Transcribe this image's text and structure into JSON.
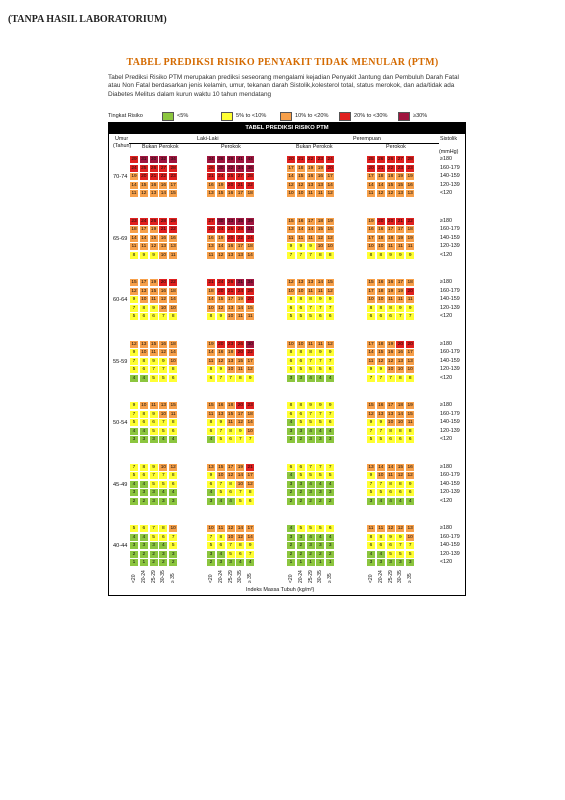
{
  "header": "(TANPA HASIL LABORATORIUM)",
  "title": "TABEL PREDIKSI RISIKO PENYAKIT TIDAK MENULAR (PTM)",
  "intro": "Tabel Prediksi Risiko PTM merupakan prediksi seseorang mengalami kejadian Penyakit Jantung dan Pembuluh Darah Fatal atau Non Fatal berdasarkan jenis kelamin, umur, tekanan darah Sistolik,kolesterol total, status merokok, dan ada/tidak ada Diabetes Melitus dalam kurun waktu 10 tahun mendatang",
  "legend": {
    "label": "Tingkat Risiko",
    "items": [
      {
        "label": "<5%",
        "color": "#8cc63f"
      },
      {
        "label": "5% to <10%",
        "color": "#ffff33"
      },
      {
        "label": "10% to <20%",
        "color": "#f7a04a"
      },
      {
        "label": "20% to <30%",
        "color": "#e0201f"
      },
      {
        "label": "≥30%",
        "color": "#a0153e"
      }
    ]
  },
  "panel": {
    "title": "TABEL PREDIKSI RISIKO PTM",
    "umur": "Umur",
    "tahun": "(Tahun)",
    "laki": "Laki-Laki",
    "perempuan": "Perempuan",
    "bukan": "Bukan Perokok",
    "perokok": "Perokok",
    "sistolik": "Sistolik",
    "mmhg": "(mmHg)",
    "xlabel": "Indeks Massa Tubuh (kg/m²)",
    "bmi": [
      "<20",
      "20-24",
      "25-29",
      "30-35",
      "≥ 35"
    ],
    "systolic": [
      "≥180",
      "160-179",
      "140-159",
      "120-139",
      "<120"
    ],
    "systolic_last": [
      "≥180",
      "160-179",
      "140-159",
      "120-139",
      "<120"
    ]
  },
  "age_groups": [
    {
      "age": "70-74",
      "blocks": [
        [
          [
            29,
            31,
            30,
            32,
            34
          ],
          [
            24,
            25,
            26,
            27,
            28
          ],
          [
            19,
            20,
            21,
            22,
            23
          ],
          [
            14,
            15,
            16,
            16,
            17
          ],
          [
            11,
            12,
            13,
            14,
            15
          ]
        ],
        [
          [
            34,
            36,
            39,
            41,
            44
          ],
          [
            26,
            30,
            32,
            34,
            36
          ],
          [
            21,
            24,
            25,
            27,
            28
          ],
          [
            16,
            19,
            20,
            21,
            22
          ],
          [
            13,
            15,
            16,
            17,
            18
          ]
        ],
        [
          [
            20,
            21,
            22,
            23,
            24
          ],
          [
            17,
            18,
            19,
            19,
            20
          ],
          [
            14,
            15,
            16,
            16,
            17
          ],
          [
            12,
            12,
            13,
            13,
            14
          ],
          [
            10,
            10,
            11,
            11,
            12
          ]
        ],
        [
          [
            25,
            26,
            26,
            27,
            28
          ],
          [
            20,
            21,
            22,
            23,
            23
          ],
          [
            17,
            18,
            18,
            19,
            19
          ],
          [
            14,
            14,
            15,
            15,
            16
          ],
          [
            11,
            12,
            12,
            13,
            13
          ]
        ]
      ]
    },
    {
      "age": "65-69",
      "blocks": [
        [
          [
            23,
            24,
            26,
            28,
            29
          ],
          [
            18,
            17,
            19,
            21,
            22
          ],
          [
            14,
            14,
            15,
            16,
            16
          ],
          [
            11,
            11,
            12,
            13,
            13
          ],
          [
            8,
            9,
            9,
            10,
            11
          ]
        ],
        [
          [
            27,
            30,
            33,
            35,
            39
          ],
          [
            20,
            24,
            26,
            28,
            31
          ],
          [
            16,
            19,
            20,
            22,
            24
          ],
          [
            13,
            14,
            16,
            17,
            18
          ],
          [
            11,
            12,
            13,
            13,
            14
          ]
        ],
        [
          [
            15,
            16,
            17,
            18,
            19
          ],
          [
            13,
            14,
            14,
            15,
            15
          ],
          [
            11,
            11,
            11,
            12,
            12
          ],
          [
            9,
            9,
            9,
            10,
            10
          ],
          [
            7,
            7,
            7,
            8,
            8
          ]
        ],
        [
          [
            19,
            20,
            20,
            21,
            22
          ],
          [
            16,
            16,
            17,
            17,
            18
          ],
          [
            17,
            18,
            18,
            19,
            19
          ],
          [
            10,
            10,
            11,
            11,
            11
          ],
          [
            8,
            8,
            9,
            9,
            9
          ]
        ]
      ]
    },
    {
      "age": "60-64",
      "blocks": [
        [
          [
            15,
            17,
            19,
            20,
            22
          ],
          [
            12,
            13,
            15,
            16,
            18
          ],
          [
            9,
            10,
            11,
            12,
            14
          ],
          [
            7,
            8,
            9,
            10,
            10
          ],
          [
            5,
            6,
            6,
            7,
            8
          ]
        ],
        [
          [
            21,
            24,
            26,
            31,
            34
          ],
          [
            18,
            20,
            21,
            24,
            26
          ],
          [
            14,
            15,
            17,
            19,
            20
          ],
          [
            10,
            12,
            13,
            14,
            15
          ],
          [
            8,
            9,
            10,
            11,
            11
          ]
        ],
        [
          [
            12,
            13,
            13,
            14,
            15
          ],
          [
            10,
            10,
            11,
            11,
            12
          ],
          [
            8,
            8,
            8,
            9,
            9
          ],
          [
            6,
            6,
            7,
            7,
            7
          ],
          [
            5,
            5,
            5,
            6,
            6
          ]
        ],
        [
          [
            15,
            16,
            16,
            17,
            18
          ],
          [
            17,
            18,
            19,
            19,
            20
          ],
          [
            10,
            10,
            11,
            11,
            11
          ],
          [
            8,
            8,
            8,
            9,
            9
          ],
          [
            6,
            6,
            6,
            7,
            7
          ]
        ]
      ]
    },
    {
      "age": "55-59",
      "blocks": [
        [
          [
            12,
            13,
            15,
            16,
            18
          ],
          [
            9,
            10,
            11,
            12,
            14
          ],
          [
            7,
            8,
            9,
            9,
            10
          ],
          [
            5,
            6,
            7,
            7,
            8
          ],
          [
            4,
            4,
            5,
            5,
            6
          ]
        ],
        [
          [
            19,
            20,
            23,
            26,
            30
          ],
          [
            14,
            16,
            18,
            20,
            22
          ],
          [
            11,
            12,
            13,
            15,
            17
          ],
          [
            8,
            9,
            10,
            11,
            12
          ],
          [
            6,
            7,
            7,
            8,
            9
          ]
        ],
        [
          [
            10,
            10,
            11,
            11,
            12
          ],
          [
            8,
            8,
            8,
            9,
            9
          ],
          [
            6,
            6,
            7,
            7,
            7
          ],
          [
            5,
            5,
            5,
            5,
            6
          ],
          [
            3,
            3,
            4,
            4,
            4
          ]
        ],
        [
          [
            17,
            18,
            19,
            20,
            20
          ],
          [
            14,
            15,
            16,
            16,
            17
          ],
          [
            11,
            12,
            12,
            13,
            13
          ],
          [
            9,
            9,
            10,
            10,
            10
          ],
          [
            7,
            7,
            7,
            8,
            8
          ]
        ]
      ]
    },
    {
      "age": "50-54",
      "blocks": [
        [
          [
            9,
            10,
            11,
            13,
            15
          ],
          [
            7,
            8,
            9,
            10,
            11
          ],
          [
            5,
            6,
            6,
            7,
            8
          ],
          [
            4,
            4,
            5,
            5,
            6
          ],
          [
            3,
            3,
            3,
            4,
            4
          ]
        ],
        [
          [
            15,
            16,
            18,
            20,
            23
          ],
          [
            11,
            13,
            15,
            17,
            18
          ],
          [
            8,
            9,
            11,
            12,
            14
          ],
          [
            6,
            7,
            8,
            9,
            10
          ],
          [
            4,
            5,
            6,
            7,
            7
          ]
        ],
        [
          [
            8,
            8,
            9,
            9,
            9
          ],
          [
            6,
            6,
            7,
            7,
            7
          ],
          [
            4,
            5,
            5,
            5,
            6
          ],
          [
            3,
            3,
            4,
            4,
            4
          ],
          [
            2,
            2,
            3,
            3,
            3
          ]
        ],
        [
          [
            15,
            16,
            17,
            18,
            19
          ],
          [
            12,
            13,
            13,
            14,
            15
          ],
          [
            9,
            9,
            10,
            10,
            11
          ],
          [
            7,
            7,
            8,
            8,
            8
          ],
          [
            5,
            5,
            6,
            6,
            6
          ]
        ]
      ]
    },
    {
      "age": "45-49",
      "blocks": [
        [
          [
            7,
            8,
            9,
            10,
            12
          ],
          [
            5,
            6,
            7,
            7,
            8
          ],
          [
            4,
            4,
            5,
            5,
            6
          ],
          [
            3,
            3,
            3,
            4,
            4
          ],
          [
            2,
            2,
            3,
            3,
            3
          ]
        ],
        [
          [
            13,
            15,
            17,
            19,
            21
          ],
          [
            9,
            10,
            12,
            14,
            17
          ],
          [
            6,
            7,
            8,
            10,
            12
          ],
          [
            4,
            5,
            6,
            7,
            8
          ],
          [
            3,
            4,
            4,
            5,
            6
          ]
        ],
        [
          [
            6,
            6,
            7,
            7,
            7
          ],
          [
            4,
            5,
            5,
            5,
            5
          ],
          [
            3,
            3,
            4,
            4,
            4
          ],
          [
            2,
            2,
            3,
            3,
            3
          ],
          [
            2,
            2,
            2,
            2,
            2
          ]
        ],
        [
          [
            13,
            14,
            14,
            15,
            16
          ],
          [
            9,
            10,
            11,
            12,
            12
          ],
          [
            7,
            7,
            8,
            8,
            9
          ],
          [
            5,
            5,
            6,
            6,
            6
          ],
          [
            3,
            4,
            4,
            4,
            4
          ]
        ]
      ]
    },
    {
      "age": "40-44",
      "blocks": [
        [
          [
            5,
            6,
            7,
            8,
            10
          ],
          [
            4,
            4,
            5,
            6,
            7
          ],
          [
            3,
            3,
            3,
            4,
            5
          ],
          [
            2,
            2,
            2,
            3,
            3
          ],
          [
            1,
            1,
            2,
            2,
            2
          ]
        ],
        [
          [
            10,
            11,
            12,
            14,
            17
          ],
          [
            7,
            8,
            10,
            12,
            14
          ],
          [
            5,
            6,
            7,
            8,
            9
          ],
          [
            3,
            4,
            5,
            6,
            7
          ],
          [
            2,
            3,
            3,
            4,
            4
          ]
        ],
        [
          [
            4,
            5,
            5,
            5,
            6
          ],
          [
            3,
            3,
            4,
            4,
            4
          ],
          [
            2,
            2,
            3,
            3,
            3
          ],
          [
            2,
            2,
            2,
            2,
            2
          ],
          [
            1,
            1,
            1,
            1,
            1
          ]
        ],
        [
          [
            11,
            11,
            12,
            12,
            13
          ],
          [
            8,
            8,
            9,
            9,
            10
          ],
          [
            6,
            6,
            6,
            7,
            7
          ],
          [
            4,
            4,
            5,
            5,
            5
          ],
          [
            3,
            3,
            3,
            3,
            3
          ]
        ]
      ]
    }
  ]
}
